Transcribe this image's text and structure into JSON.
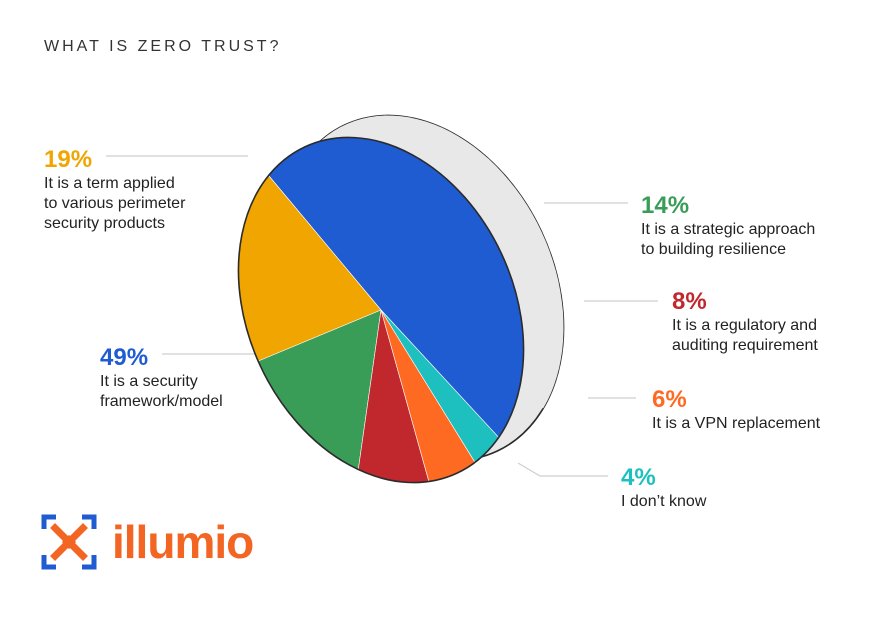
{
  "chart_data": {
    "type": "pie",
    "title": "WHAT IS ZERO TRUST?",
    "slices": [
      {
        "value": 49,
        "pct_label": "49%",
        "label": "It is a security\nframework/model",
        "color": "#1f5bd1"
      },
      {
        "value": 19,
        "pct_label": "19%",
        "label": "It is a term applied\nto various perimeter\nsecurity products",
        "color": "#f0a500"
      },
      {
        "value": 14,
        "pct_label": "14%",
        "label": "It is a strategic approach\nto building resilience",
        "color": "#3a9d57"
      },
      {
        "value": 8,
        "pct_label": "8%",
        "label": "It is a regulatory and\nauditing requirement",
        "color": "#c0282d"
      },
      {
        "value": 6,
        "pct_label": "6%",
        "label": "It is a VPN replacement",
        "color": "#ff6a22"
      },
      {
        "value": 4,
        "pct_label": "4%",
        "label": "I don’t know",
        "color": "#1dbfbf"
      }
    ]
  },
  "logo": {
    "text": "illumio",
    "icon": "illumio-logo-icon",
    "color": "#f26522",
    "accent": "#1f5bd1"
  }
}
